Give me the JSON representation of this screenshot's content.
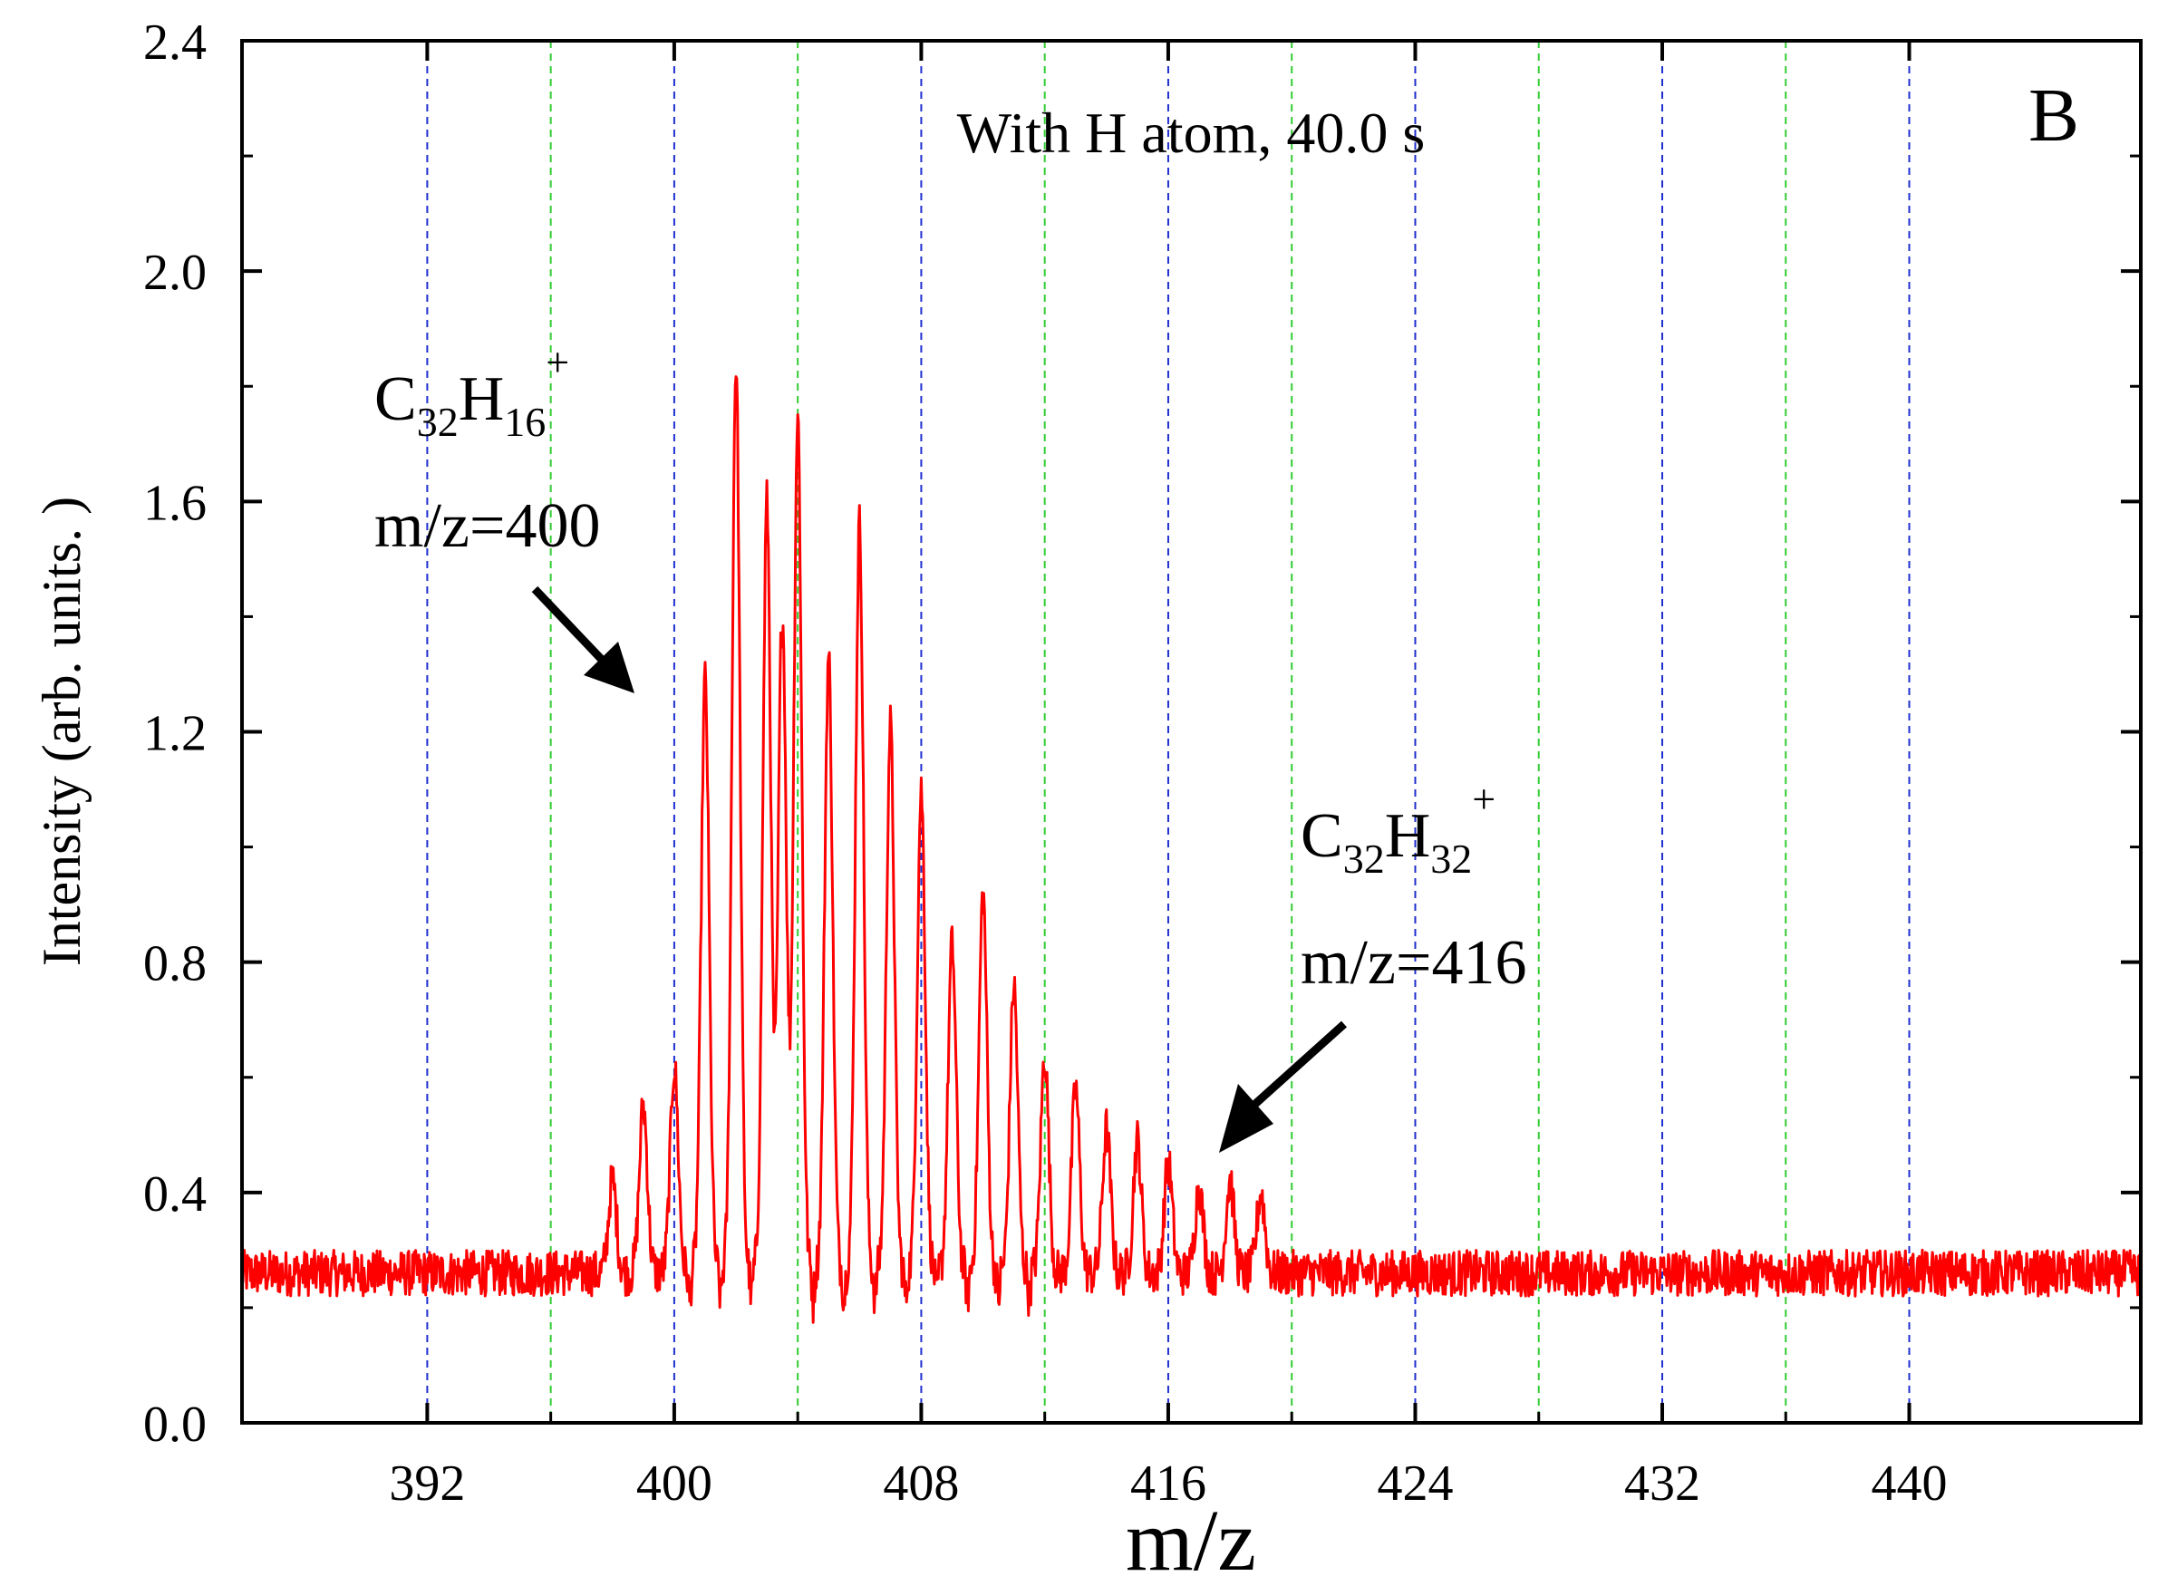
{
  "chart_data": {
    "type": "line",
    "panel_label": "B",
    "title": "With H atom, 40.0 s",
    "xlabel": "m/z",
    "ylabel": "Intensity (arb. units. )",
    "xlim": [
      386,
      447.5
    ],
    "ylim": [
      0.0,
      2.4
    ],
    "x_ticks": [
      392,
      400,
      408,
      416,
      424,
      432,
      440
    ],
    "x_tick_labels": [
      "392",
      "400",
      "408",
      "416",
      "424",
      "432",
      "440"
    ],
    "y_ticks": [
      0.0,
      0.4,
      0.8,
      1.2,
      1.6,
      2.0,
      2.4
    ],
    "y_tick_labels": [
      "0.0",
      "0.4",
      "0.8",
      "1.2",
      "1.6",
      "2.0",
      "2.4"
    ],
    "gridlines": {
      "blue": [
        392,
        400,
        408,
        416,
        424,
        432,
        440
      ],
      "green": [
        396,
        404,
        412,
        420,
        428,
        436
      ],
      "style": "dashed",
      "blue_color": "#1f2fd0",
      "green_color": "#33cc33"
    },
    "series": [
      {
        "name": "spectrum",
        "color": "#ff0000",
        "baseline": 0.26,
        "noise": 0.04,
        "peaks": [
          {
            "mz": 398,
            "intensity": 0.42
          },
          {
            "mz": 399,
            "intensity": 0.55
          },
          {
            "mz": 400,
            "intensity": 0.62
          },
          {
            "mz": 401,
            "intensity": 1.29
          },
          {
            "mz": 402,
            "intensity": 1.84
          },
          {
            "mz": 403,
            "intensity": 1.6
          },
          {
            "mz": 403.5,
            "intensity": 1.44
          },
          {
            "mz": 404,
            "intensity": 1.75
          },
          {
            "mz": 405,
            "intensity": 1.33
          },
          {
            "mz": 406,
            "intensity": 1.56
          },
          {
            "mz": 407,
            "intensity": 1.21
          },
          {
            "mz": 408,
            "intensity": 1.1
          },
          {
            "mz": 409,
            "intensity": 0.83
          },
          {
            "mz": 410,
            "intensity": 0.92
          },
          {
            "mz": 411,
            "intensity": 0.76
          },
          {
            "mz": 412,
            "intensity": 0.64
          },
          {
            "mz": 413,
            "intensity": 0.58
          },
          {
            "mz": 414,
            "intensity": 0.51
          },
          {
            "mz": 415,
            "intensity": 0.49
          },
          {
            "mz": 416,
            "intensity": 0.45
          },
          {
            "mz": 417,
            "intensity": 0.41
          },
          {
            "mz": 418,
            "intensity": 0.42
          },
          {
            "mz": 419,
            "intensity": 0.4
          }
        ]
      }
    ],
    "annotations": [
      {
        "id": "c32h16",
        "formula_base": "C",
        "formula_sub1": "32",
        "formula_mid": "H",
        "formula_sub2": "16",
        "charge": "+",
        "mass_label": "m/z=400",
        "arrow_to_mz": 400,
        "arrow_to_intensity": 1.27
      },
      {
        "id": "c32h32",
        "formula_base": "C",
        "formula_sub1": "32",
        "formula_mid": "H",
        "formula_sub2": "32",
        "charge": "+",
        "mass_label": "m/z=416",
        "arrow_to_mz": 416.8,
        "arrow_to_intensity": 0.47
      }
    ]
  }
}
